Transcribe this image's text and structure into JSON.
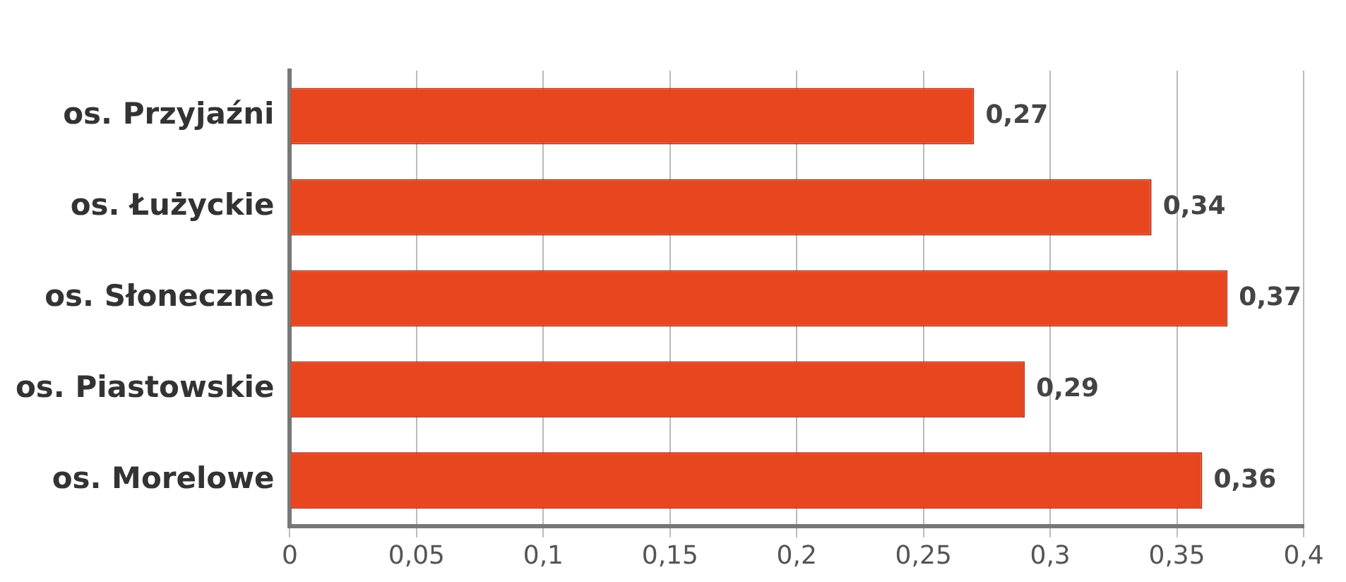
{
  "chart_data": {
    "type": "bar",
    "orientation": "horizontal",
    "categories": [
      "os. Przyjaźni",
      "os. Łużyckie",
      "os. Słoneczne",
      "os. Piastowskie",
      "os. Morelowe"
    ],
    "values": [
      0.27,
      0.34,
      0.37,
      0.29,
      0.36
    ],
    "value_labels": [
      "0,27",
      "0,34",
      "0,37",
      "0,29",
      "0,36"
    ],
    "color": "#e8461e",
    "xlim": [
      0,
      0.4
    ],
    "xticks": [
      0,
      {
        "value": 0.05,
        "label": "0,05"
      },
      {
        "value": 0.1,
        "label": "0,1"
      },
      {
        "value": 0.15,
        "label": "0,15"
      },
      {
        "value": 0.2,
        "label": "0,2"
      },
      {
        "value": 0.25,
        "label": "0,25"
      },
      {
        "value": 0.3,
        "label": "0,3"
      },
      {
        "value": 0.35,
        "label": "0,35"
      },
      {
        "value": 0.4,
        "label": "0,4"
      }
    ],
    "grid": "x"
  }
}
